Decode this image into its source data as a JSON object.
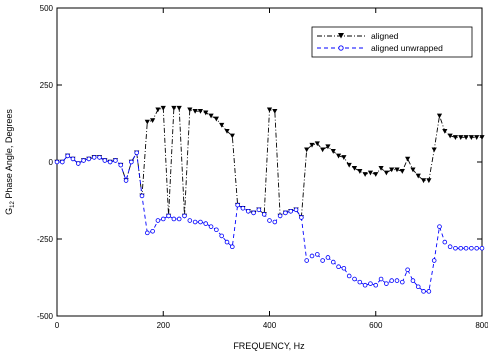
{
  "chart_data": {
    "type": "line",
    "xlabel": "FREQUENCY, Hz",
    "ylabel_prefix": "G",
    "ylabel_sub": "12",
    "ylabel_suffix": " Phase Angle, Degrees",
    "xlim": [
      0,
      800
    ],
    "ylim": [
      -500,
      500
    ],
    "xticks": [
      0,
      200,
      400,
      600,
      800
    ],
    "yticks": [
      -500,
      -250,
      0,
      250,
      500
    ],
    "grid": false,
    "legend_position": "top-right",
    "series": [
      {
        "name": "aligned",
        "color": "#000000",
        "marker": "triangle-down",
        "linestyle": "dash-dot",
        "x": [
          0,
          10,
          20,
          30,
          40,
          50,
          60,
          70,
          80,
          90,
          100,
          110,
          120,
          130,
          140,
          150,
          160,
          170,
          180,
          190,
          200,
          210,
          220,
          230,
          240,
          250,
          260,
          270,
          280,
          290,
          300,
          310,
          320,
          330,
          340,
          350,
          360,
          370,
          380,
          390,
          400,
          410,
          420,
          430,
          440,
          450,
          460,
          470,
          480,
          490,
          500,
          510,
          520,
          530,
          540,
          550,
          560,
          570,
          580,
          590,
          600,
          610,
          620,
          630,
          640,
          650,
          660,
          670,
          680,
          690,
          700,
          710,
          720,
          730,
          740,
          750,
          760,
          770,
          780,
          790,
          800
        ],
        "y": [
          0,
          0,
          20,
          10,
          -5,
          5,
          10,
          15,
          15,
          5,
          0,
          5,
          -10,
          -60,
          0,
          30,
          -110,
          130,
          135,
          170,
          175,
          -175,
          175,
          175,
          -175,
          170,
          165,
          165,
          160,
          150,
          140,
          120,
          100,
          85,
          -140,
          -150,
          -160,
          -165,
          -155,
          -170,
          170,
          165,
          -175,
          -165,
          -160,
          -155,
          -180,
          40,
          55,
          60,
          40,
          50,
          35,
          20,
          15,
          -10,
          -20,
          -30,
          -40,
          -35,
          -40,
          -20,
          -35,
          -25,
          -25,
          -30,
          10,
          -25,
          -45,
          -60,
          -60,
          40,
          150,
          100,
          85,
          80,
          80,
          80,
          80,
          80,
          80
        ]
      },
      {
        "name": "aligned unwrapped",
        "color": "#0000ff",
        "marker": "circle",
        "linestyle": "dashed",
        "x": [
          0,
          10,
          20,
          30,
          40,
          50,
          60,
          70,
          80,
          90,
          100,
          110,
          120,
          130,
          140,
          150,
          160,
          170,
          180,
          190,
          200,
          210,
          220,
          230,
          240,
          250,
          260,
          270,
          280,
          290,
          300,
          310,
          320,
          330,
          340,
          350,
          360,
          370,
          380,
          390,
          400,
          410,
          420,
          430,
          440,
          450,
          460,
          470,
          480,
          490,
          500,
          510,
          520,
          530,
          540,
          550,
          560,
          570,
          580,
          590,
          600,
          610,
          620,
          630,
          640,
          650,
          660,
          670,
          680,
          690,
          700,
          710,
          720,
          730,
          740,
          750,
          760,
          770,
          780,
          790,
          800
        ],
        "y": [
          0,
          0,
          20,
          10,
          -5,
          5,
          10,
          15,
          15,
          5,
          0,
          5,
          -10,
          -60,
          0,
          30,
          -110,
          -230,
          -225,
          -190,
          -185,
          -175,
          -185,
          -185,
          -175,
          -190,
          -195,
          -195,
          -200,
          -210,
          -220,
          -240,
          -260,
          -275,
          -140,
          -150,
          -160,
          -165,
          -155,
          -170,
          -190,
          -195,
          -175,
          -165,
          -160,
          -155,
          -180,
          -320,
          -305,
          -300,
          -320,
          -310,
          -325,
          -340,
          -345,
          -370,
          -380,
          -390,
          -400,
          -395,
          -400,
          -380,
          -395,
          -385,
          -385,
          -390,
          -350,
          -385,
          -405,
          -420,
          -420,
          -320,
          -210,
          -260,
          -275,
          -280,
          -280,
          -280,
          -280,
          -280,
          -280
        ]
      }
    ]
  }
}
